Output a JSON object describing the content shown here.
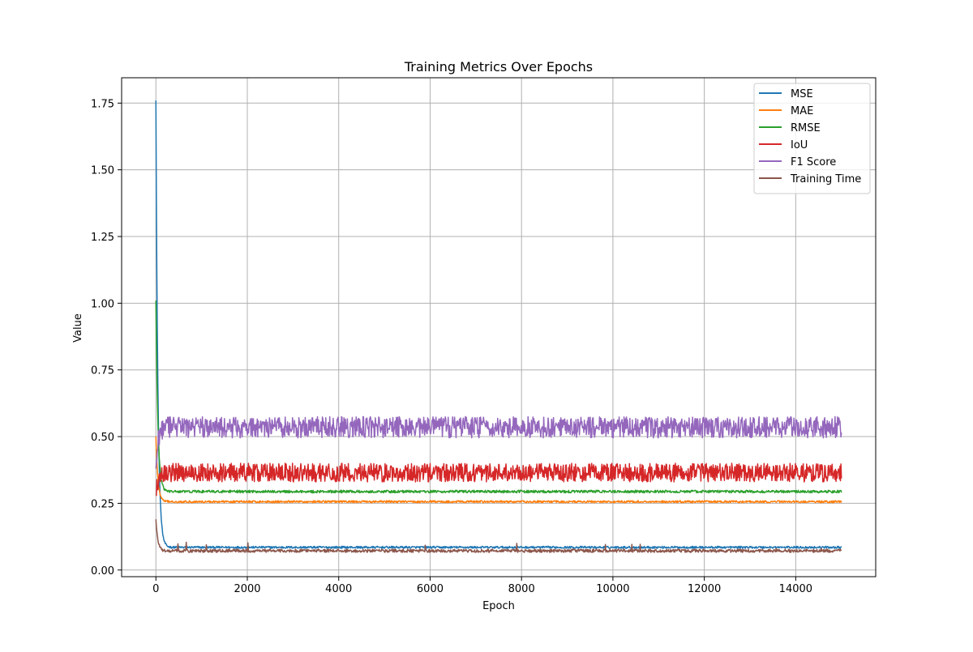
{
  "chart_data": {
    "type": "line",
    "title": "Training Metrics Over Epochs",
    "xlabel": "Epoch",
    "ylabel": "Value",
    "xlim": [
      -750,
      15750
    ],
    "ylim": [
      -0.025,
      1.845
    ],
    "xticks": [
      0,
      2000,
      4000,
      6000,
      8000,
      10000,
      12000,
      14000
    ],
    "xtick_labels": [
      "0",
      "2000",
      "4000",
      "6000",
      "8000",
      "10000",
      "12000",
      "14000"
    ],
    "yticks": [
      0.0,
      0.25,
      0.5,
      0.75,
      1.0,
      1.25,
      1.5,
      1.75
    ],
    "ytick_labels": [
      "0.00",
      "0.25",
      "0.50",
      "0.75",
      "1.00",
      "1.25",
      "1.50",
      "1.75"
    ],
    "grid": true,
    "legend_position": "top-right",
    "x_range": [
      0,
      15000
    ],
    "series": [
      {
        "name": "MSE",
        "color": "#1f77b4",
        "start_value": 1.76,
        "steady_value": 0.085,
        "noise_amplitude": 0.004
      },
      {
        "name": "MAE",
        "color": "#ff7f0e",
        "start_value": 0.5,
        "steady_value": 0.256,
        "noise_amplitude": 0.004
      },
      {
        "name": "RMSE",
        "color": "#2ca02c",
        "start_value": 1.01,
        "steady_value": 0.294,
        "noise_amplitude": 0.005
      },
      {
        "name": "IoU",
        "color": "#d62728",
        "start_value": 0.28,
        "steady_value": 0.365,
        "noise_amplitude": 0.035
      },
      {
        "name": "F1 Score",
        "color": "#9467bd",
        "start_value": 0.38,
        "steady_value": 0.535,
        "noise_amplitude": 0.04
      },
      {
        "name": "Training Time",
        "color": "#8c564b",
        "start_value": 0.19,
        "steady_value": 0.072,
        "noise_amplitude": 0.006
      }
    ]
  }
}
